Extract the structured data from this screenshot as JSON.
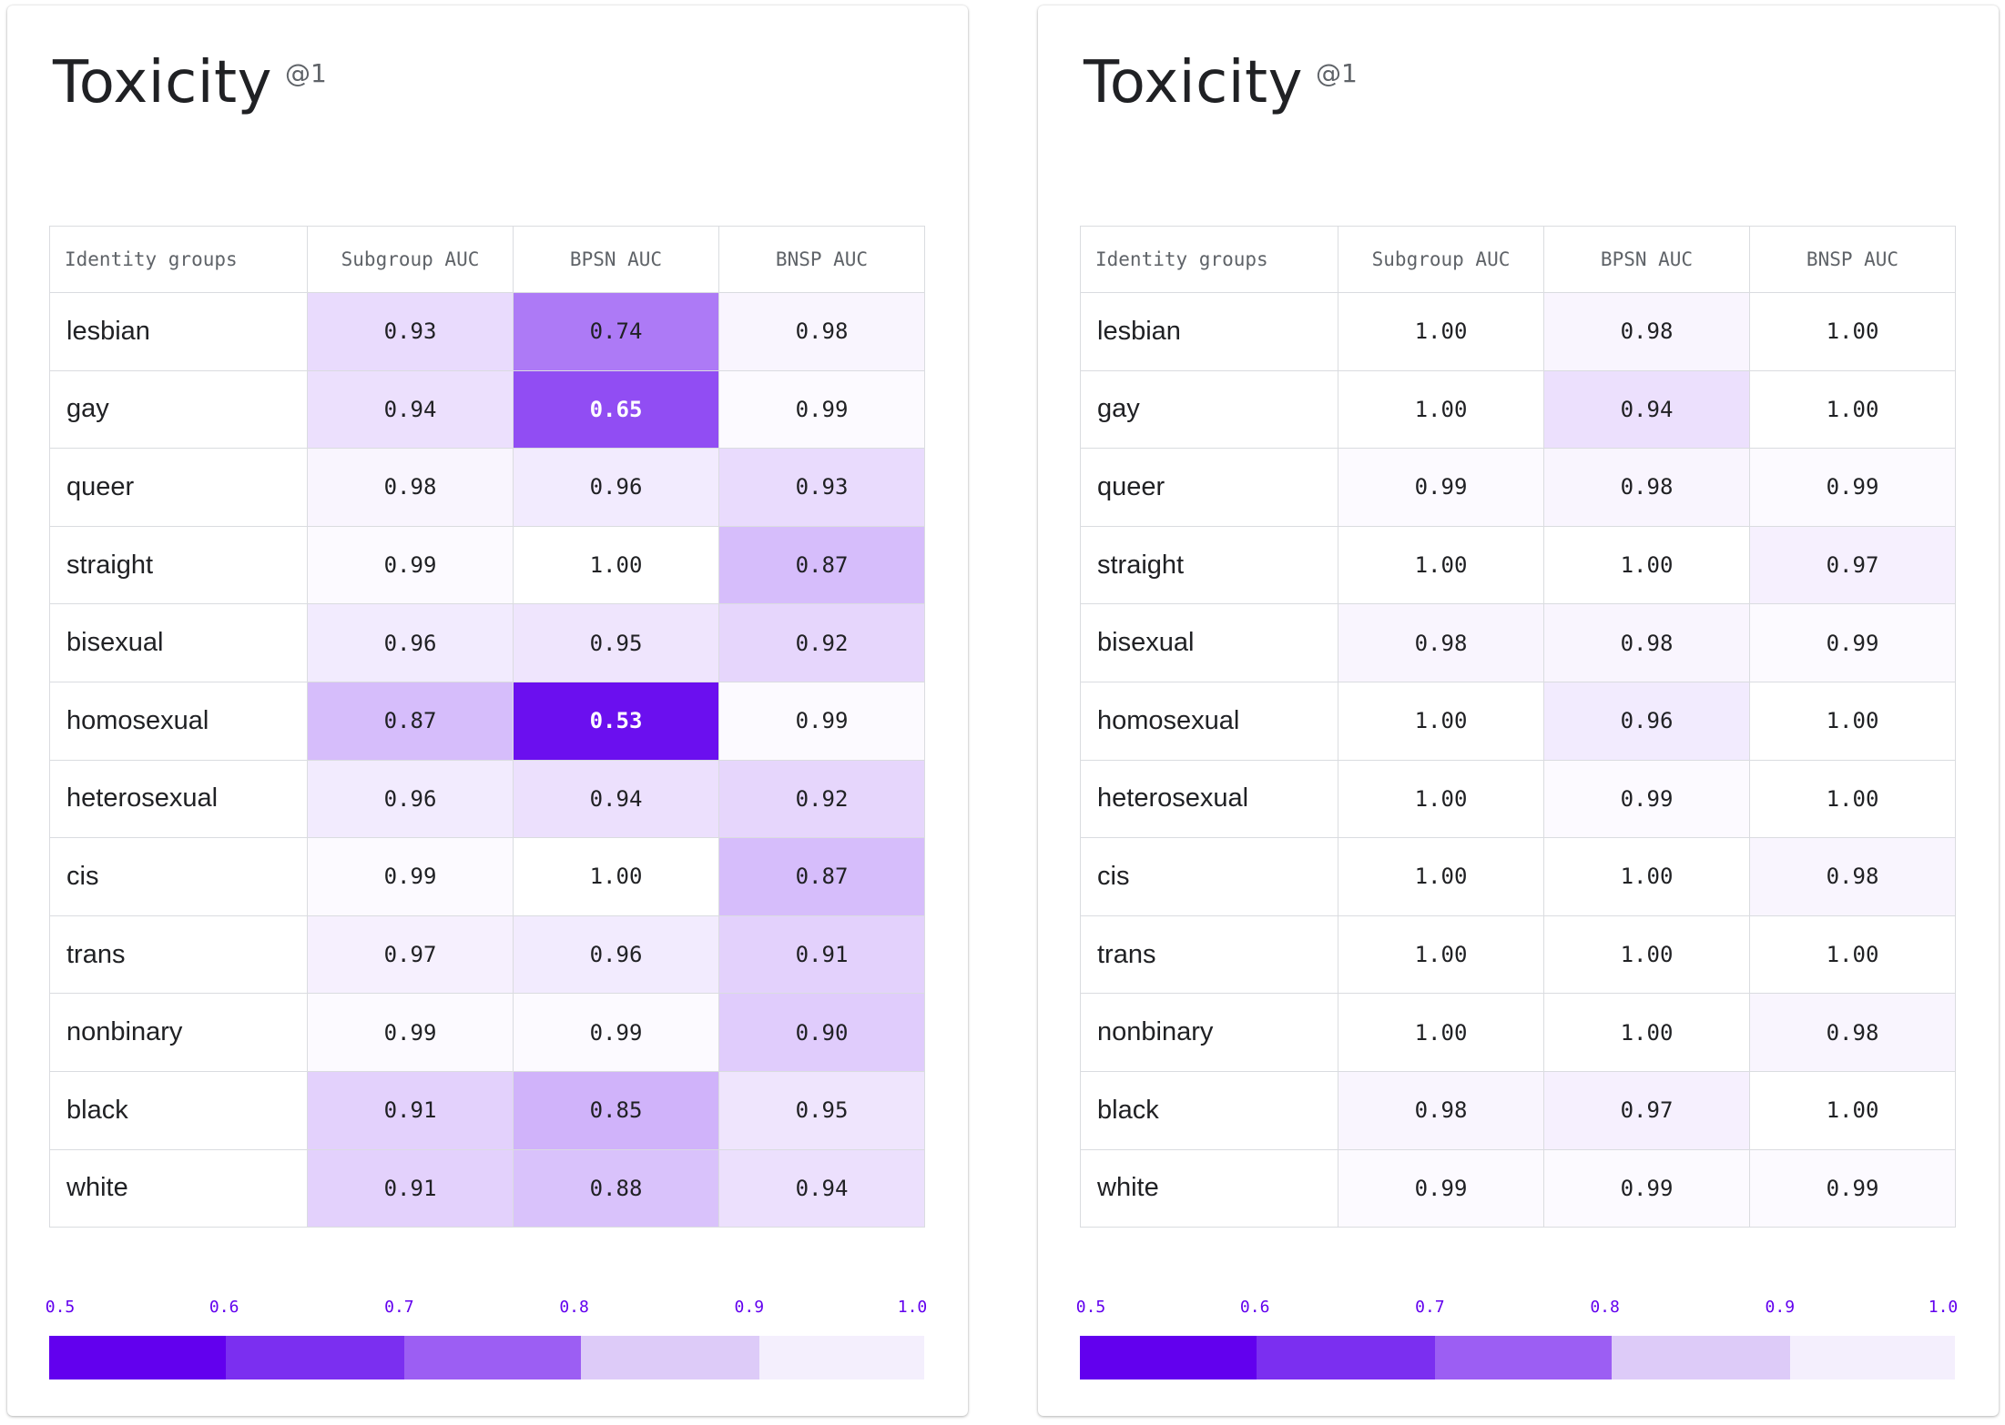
{
  "colors": {
    "scale": [
      "#6200ee",
      "#7b2ff0",
      "#9c5ef3",
      "#ddcbf8",
      "#f4effd"
    ]
  },
  "chart_data": [
    {
      "type": "heatmap",
      "title": "Toxicity",
      "title_suffix": "@1",
      "columns": [
        "Identity groups",
        "Subgroup AUC",
        "BPSN AUC",
        "BNSP AUC"
      ],
      "rows": [
        {
          "group": "lesbian",
          "values": [
            "0.93",
            "0.74",
            "0.98"
          ]
        },
        {
          "group": "gay",
          "values": [
            "0.94",
            "0.65",
            "0.99"
          ]
        },
        {
          "group": "queer",
          "values": [
            "0.98",
            "0.96",
            "0.93"
          ]
        },
        {
          "group": "straight",
          "values": [
            "0.99",
            "1.00",
            "0.87"
          ]
        },
        {
          "group": "bisexual",
          "values": [
            "0.96",
            "0.95",
            "0.92"
          ]
        },
        {
          "group": "homosexual",
          "values": [
            "0.87",
            "0.53",
            "0.99"
          ]
        },
        {
          "group": "heterosexual",
          "values": [
            "0.96",
            "0.94",
            "0.92"
          ]
        },
        {
          "group": "cis",
          "values": [
            "0.99",
            "1.00",
            "0.87"
          ]
        },
        {
          "group": "trans",
          "values": [
            "0.97",
            "0.96",
            "0.91"
          ]
        },
        {
          "group": "nonbinary",
          "values": [
            "0.99",
            "0.99",
            "0.90"
          ]
        },
        {
          "group": "black",
          "values": [
            "0.91",
            "0.85",
            "0.95"
          ]
        },
        {
          "group": "white",
          "values": [
            "0.91",
            "0.88",
            "0.94"
          ]
        }
      ],
      "legend": {
        "ticks": [
          "0.5",
          "0.6",
          "0.7",
          "0.8",
          "0.9",
          "1.0"
        ],
        "range": [
          0.5,
          1.0
        ]
      }
    },
    {
      "type": "heatmap",
      "title": "Toxicity",
      "title_suffix": "@1",
      "columns": [
        "Identity groups",
        "Subgroup AUC",
        "BPSN AUC",
        "BNSP AUC"
      ],
      "rows": [
        {
          "group": "lesbian",
          "values": [
            "1.00",
            "0.98",
            "1.00"
          ]
        },
        {
          "group": "gay",
          "values": [
            "1.00",
            "0.94",
            "1.00"
          ]
        },
        {
          "group": "queer",
          "values": [
            "0.99",
            "0.98",
            "0.99"
          ]
        },
        {
          "group": "straight",
          "values": [
            "1.00",
            "1.00",
            "0.97"
          ]
        },
        {
          "group": "bisexual",
          "values": [
            "0.98",
            "0.98",
            "0.99"
          ]
        },
        {
          "group": "homosexual",
          "values": [
            "1.00",
            "0.96",
            "1.00"
          ]
        },
        {
          "group": "heterosexual",
          "values": [
            "1.00",
            "0.99",
            "1.00"
          ]
        },
        {
          "group": "cis",
          "values": [
            "1.00",
            "1.00",
            "0.98"
          ]
        },
        {
          "group": "trans",
          "values": [
            "1.00",
            "1.00",
            "1.00"
          ]
        },
        {
          "group": "nonbinary",
          "values": [
            "1.00",
            "1.00",
            "0.98"
          ]
        },
        {
          "group": "black",
          "values": [
            "0.98",
            "0.97",
            "1.00"
          ]
        },
        {
          "group": "white",
          "values": [
            "0.99",
            "0.99",
            "0.99"
          ]
        }
      ],
      "legend": {
        "ticks": [
          "0.5",
          "0.6",
          "0.7",
          "0.8",
          "0.9",
          "1.0"
        ],
        "range": [
          0.5,
          1.0
        ]
      }
    }
  ]
}
